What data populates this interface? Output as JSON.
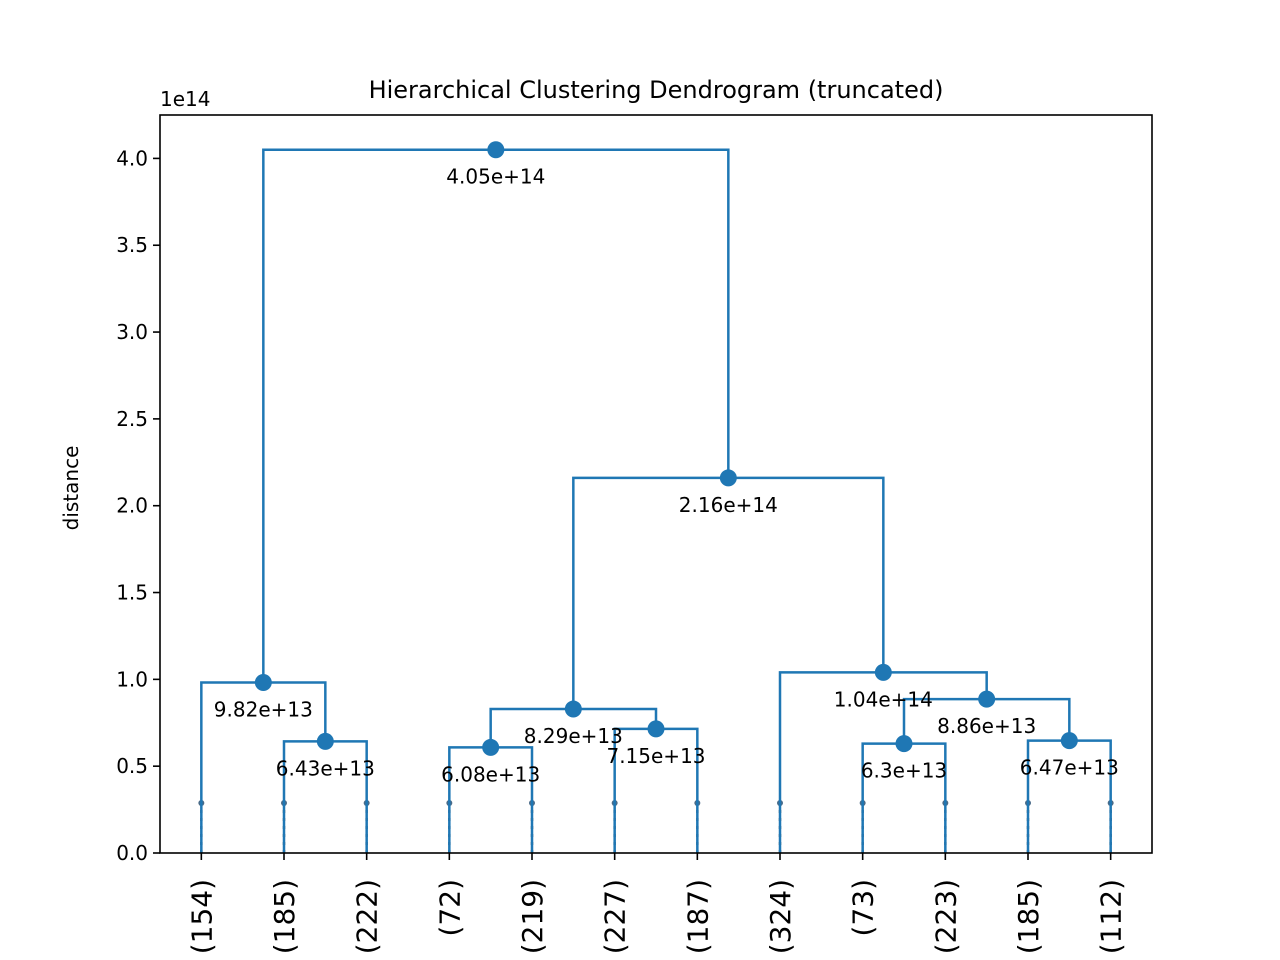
{
  "chart_data": {
    "type": "dendrogram",
    "title": "Hierarchical Clustering Dendrogram (truncated)",
    "xlabel": "",
    "ylabel": "distance",
    "y_offset_label": "1e14",
    "ylim": [
      0,
      425000000000000.0
    ],
    "yticks": [
      0.0,
      0.5,
      1.0,
      1.5,
      2.0,
      2.5,
      3.0,
      3.5,
      4.0
    ],
    "ytick_labels": [
      "0.0",
      "0.5",
      "1.0",
      "1.5",
      "2.0",
      "2.5",
      "3.0",
      "3.5",
      "4.0"
    ],
    "leaves": [
      "(154)",
      "(185)",
      "(222)",
      "(72)",
      "(219)",
      "(227)",
      "(187)",
      "(324)",
      "(73)",
      "(223)",
      "(185)",
      "(112)"
    ],
    "link_color": "#1f77b4",
    "merges": [
      {
        "left": 1,
        "right": 2,
        "height": 64300000000000.0,
        "label": "6.43e+13"
      },
      {
        "left": 0,
        "right": "m0",
        "height": 98200000000000.0,
        "label": "9.82e+13"
      },
      {
        "left": 3,
        "right": 4,
        "height": 60800000000000.0,
        "label": "6.08e+13"
      },
      {
        "left": 5,
        "right": 6,
        "height": 71500000000000.0,
        "label": "7.15e+13"
      },
      {
        "left": "m2",
        "right": "m3",
        "height": 82900000000000.0,
        "label": "8.29e+13"
      },
      {
        "left": 8,
        "right": 9,
        "height": 63000000000000.0,
        "label": "6.3e+13"
      },
      {
        "left": 10,
        "right": 11,
        "height": 64700000000000.0,
        "label": "6.47e+13"
      },
      {
        "left": "m5",
        "right": "m6",
        "height": 88600000000000.0,
        "label": "8.86e+13"
      },
      {
        "left": 7,
        "right": "m7",
        "height": 104000000000000.0,
        "label": "1.04e+14"
      },
      {
        "left": "m4",
        "right": "m8",
        "height": 216000000000000.0,
        "label": "2.16e+14"
      },
      {
        "left": "m1",
        "right": "m9",
        "height": 405000000000000.0,
        "label": "4.05e+14"
      }
    ]
  }
}
